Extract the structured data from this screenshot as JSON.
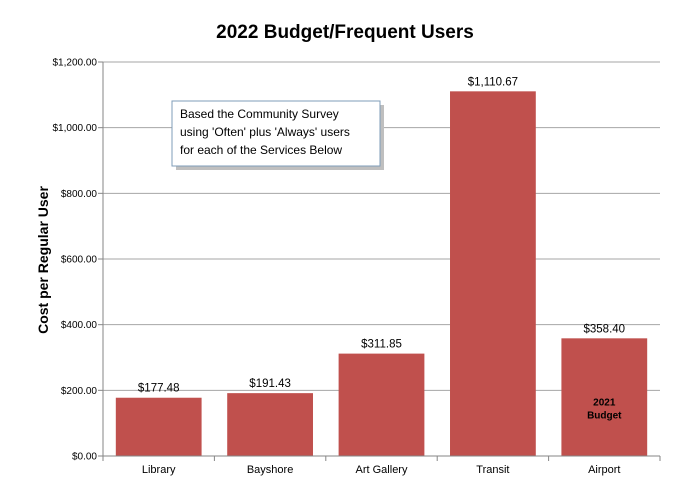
{
  "chart_data": {
    "type": "bar",
    "title": "2022 Budget/Frequent Users",
    "xlabel": "",
    "ylabel": "Cost per Regular User",
    "categories": [
      "Library",
      "Bayshore",
      "Art Gallery",
      "Transit",
      "Airport"
    ],
    "values": [
      177.48,
      191.43,
      311.85,
      1110.67,
      358.4
    ],
    "data_labels": [
      "$177.48",
      "$191.43",
      "$311.85",
      "$1,110.67",
      "$358.40"
    ],
    "ylim": [
      0,
      1200
    ],
    "yticks": [
      0,
      200,
      400,
      600,
      800,
      1000,
      1200
    ],
    "ytick_labels": [
      "$0.00",
      "$200.00",
      "$400.00",
      "$600.00",
      "$800.00",
      "$1,000.00",
      "$1,200.00"
    ],
    "grid": true,
    "bar_color": "#c0504d",
    "bar_inner_labels": [
      {
        "category": "Airport",
        "lines": [
          "2021",
          "Budget"
        ]
      }
    ],
    "annotation": {
      "lines": [
        "Based the Community Survey",
        "using  'Often' plus 'Always' users",
        "for each of the Services Below"
      ]
    }
  }
}
